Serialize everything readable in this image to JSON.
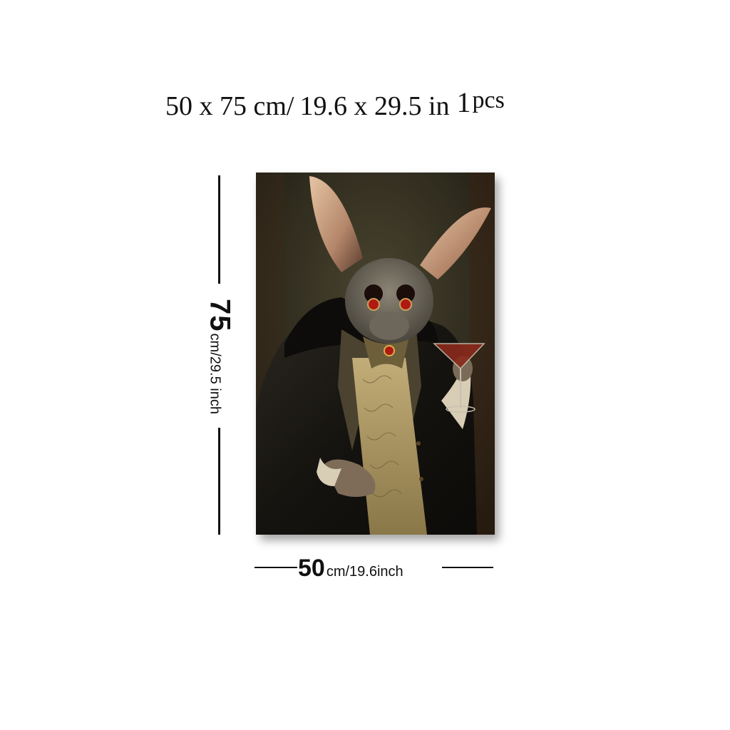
{
  "headline": {
    "dim1": "50 x 75 cm/",
    "dim2": "19.6  x  29.5 in",
    "qty": "1",
    "pcs": "pcs"
  },
  "height_label": {
    "number": "75",
    "unit": "cm/29.5 inch"
  },
  "width_label": {
    "number": "50",
    "unit": "cm/19.6inch"
  },
  "painting": {
    "subject": "portrait of a bat in aristocratic attire holding a cocktail glass",
    "colors": {
      "background": "#2e2a1d",
      "coat": "#1c1a15",
      "vest": "#a89460",
      "ears": "#c49b7a",
      "eyes": "#b01a12",
      "wine": "#8a2a1c"
    }
  }
}
